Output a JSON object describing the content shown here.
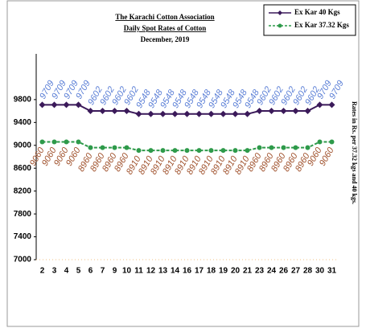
{
  "chart_data": {
    "type": "line",
    "title": "The Karachi Cotton Association",
    "subtitle": "Daily Spot Rates of Cotton",
    "date": "December, 2019",
    "y_label": "Rates in Rs. per 37.32 kgs and 40 kgs.",
    "categories": [
      "2",
      "3",
      "4",
      "5",
      "6",
      "7",
      "9",
      "10",
      "11",
      "12",
      "13",
      "14",
      "16",
      "17",
      "18",
      "19",
      "20",
      "21",
      "23",
      "24",
      "26",
      "27",
      "28",
      "30",
      "31"
    ],
    "series": [
      {
        "name": "Ex Kar 40 Kgs",
        "color": "#3b1a5a",
        "label_color": "#5b7fd6",
        "dashed": false,
        "marker": "diamond",
        "values": [
          9709,
          9709,
          9709,
          9709,
          9602,
          9602,
          9602,
          9602,
          9548,
          9548,
          9548,
          9548,
          9548,
          9548,
          9548,
          9548,
          9548,
          9548,
          9602,
          9602,
          9602,
          9602,
          9602,
          9709,
          9709
        ]
      },
      {
        "name": "Ex Kar 37.32 Kgs",
        "color": "#2e9a4a",
        "label_color": "#a0522d",
        "dashed": true,
        "marker": "circle",
        "values": [
          9060,
          9060,
          9060,
          9060,
          8960,
          8960,
          8960,
          8960,
          8910,
          8910,
          8910,
          8910,
          8910,
          8910,
          8910,
          8910,
          8910,
          8910,
          8960,
          8960,
          8960,
          8960,
          8960,
          9060,
          9060
        ]
      }
    ],
    "ylim": [
      7000,
      10600
    ],
    "yticks": [
      7000,
      7400,
      7800,
      8200,
      8600,
      9000,
      9400,
      9800
    ]
  }
}
